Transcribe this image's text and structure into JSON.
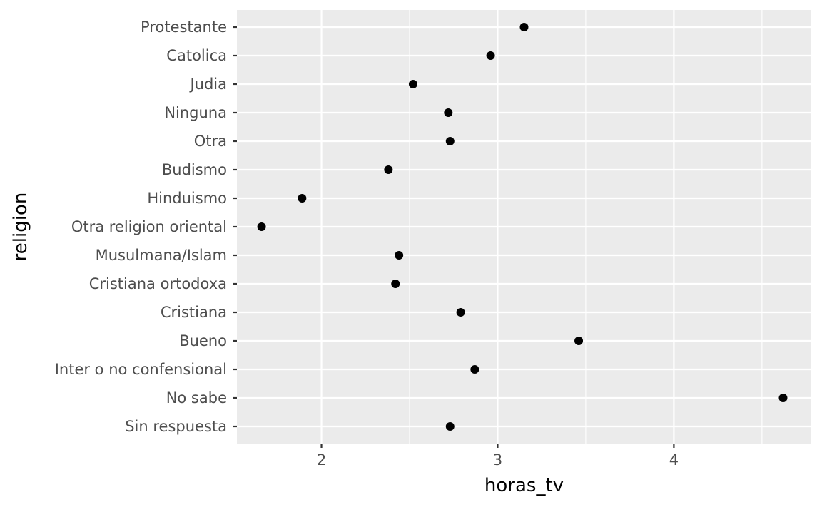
{
  "chart_data": {
    "type": "scatter",
    "title": "",
    "xlabel": "horas_tv",
    "ylabel": "religion",
    "xlim": [
      1.52,
      4.78
    ],
    "x_ticks": [
      2,
      3,
      4
    ],
    "x_tick_labels": [
      "2",
      "3",
      "4"
    ],
    "x_minor_ticks": [
      1.5,
      2.5,
      3.5,
      4.5
    ],
    "grid": true,
    "legend": "none",
    "point_color": "#000000",
    "panel_color": "#ebebeb",
    "categories": [
      "Protestante",
      "Catolica",
      "Judia",
      "Ninguna",
      "Otra",
      "Budismo",
      "Hinduismo",
      "Otra religion oriental",
      "Musulmana/Islam",
      "Cristiana ortodoxa",
      "Cristiana",
      "Bueno",
      "Inter o no confensional",
      "No sabe",
      "Sin respuesta"
    ],
    "x": [
      3.15,
      2.96,
      2.52,
      2.72,
      2.73,
      2.38,
      1.89,
      1.66,
      2.44,
      2.42,
      2.79,
      3.46,
      2.87,
      4.62,
      2.73
    ]
  }
}
